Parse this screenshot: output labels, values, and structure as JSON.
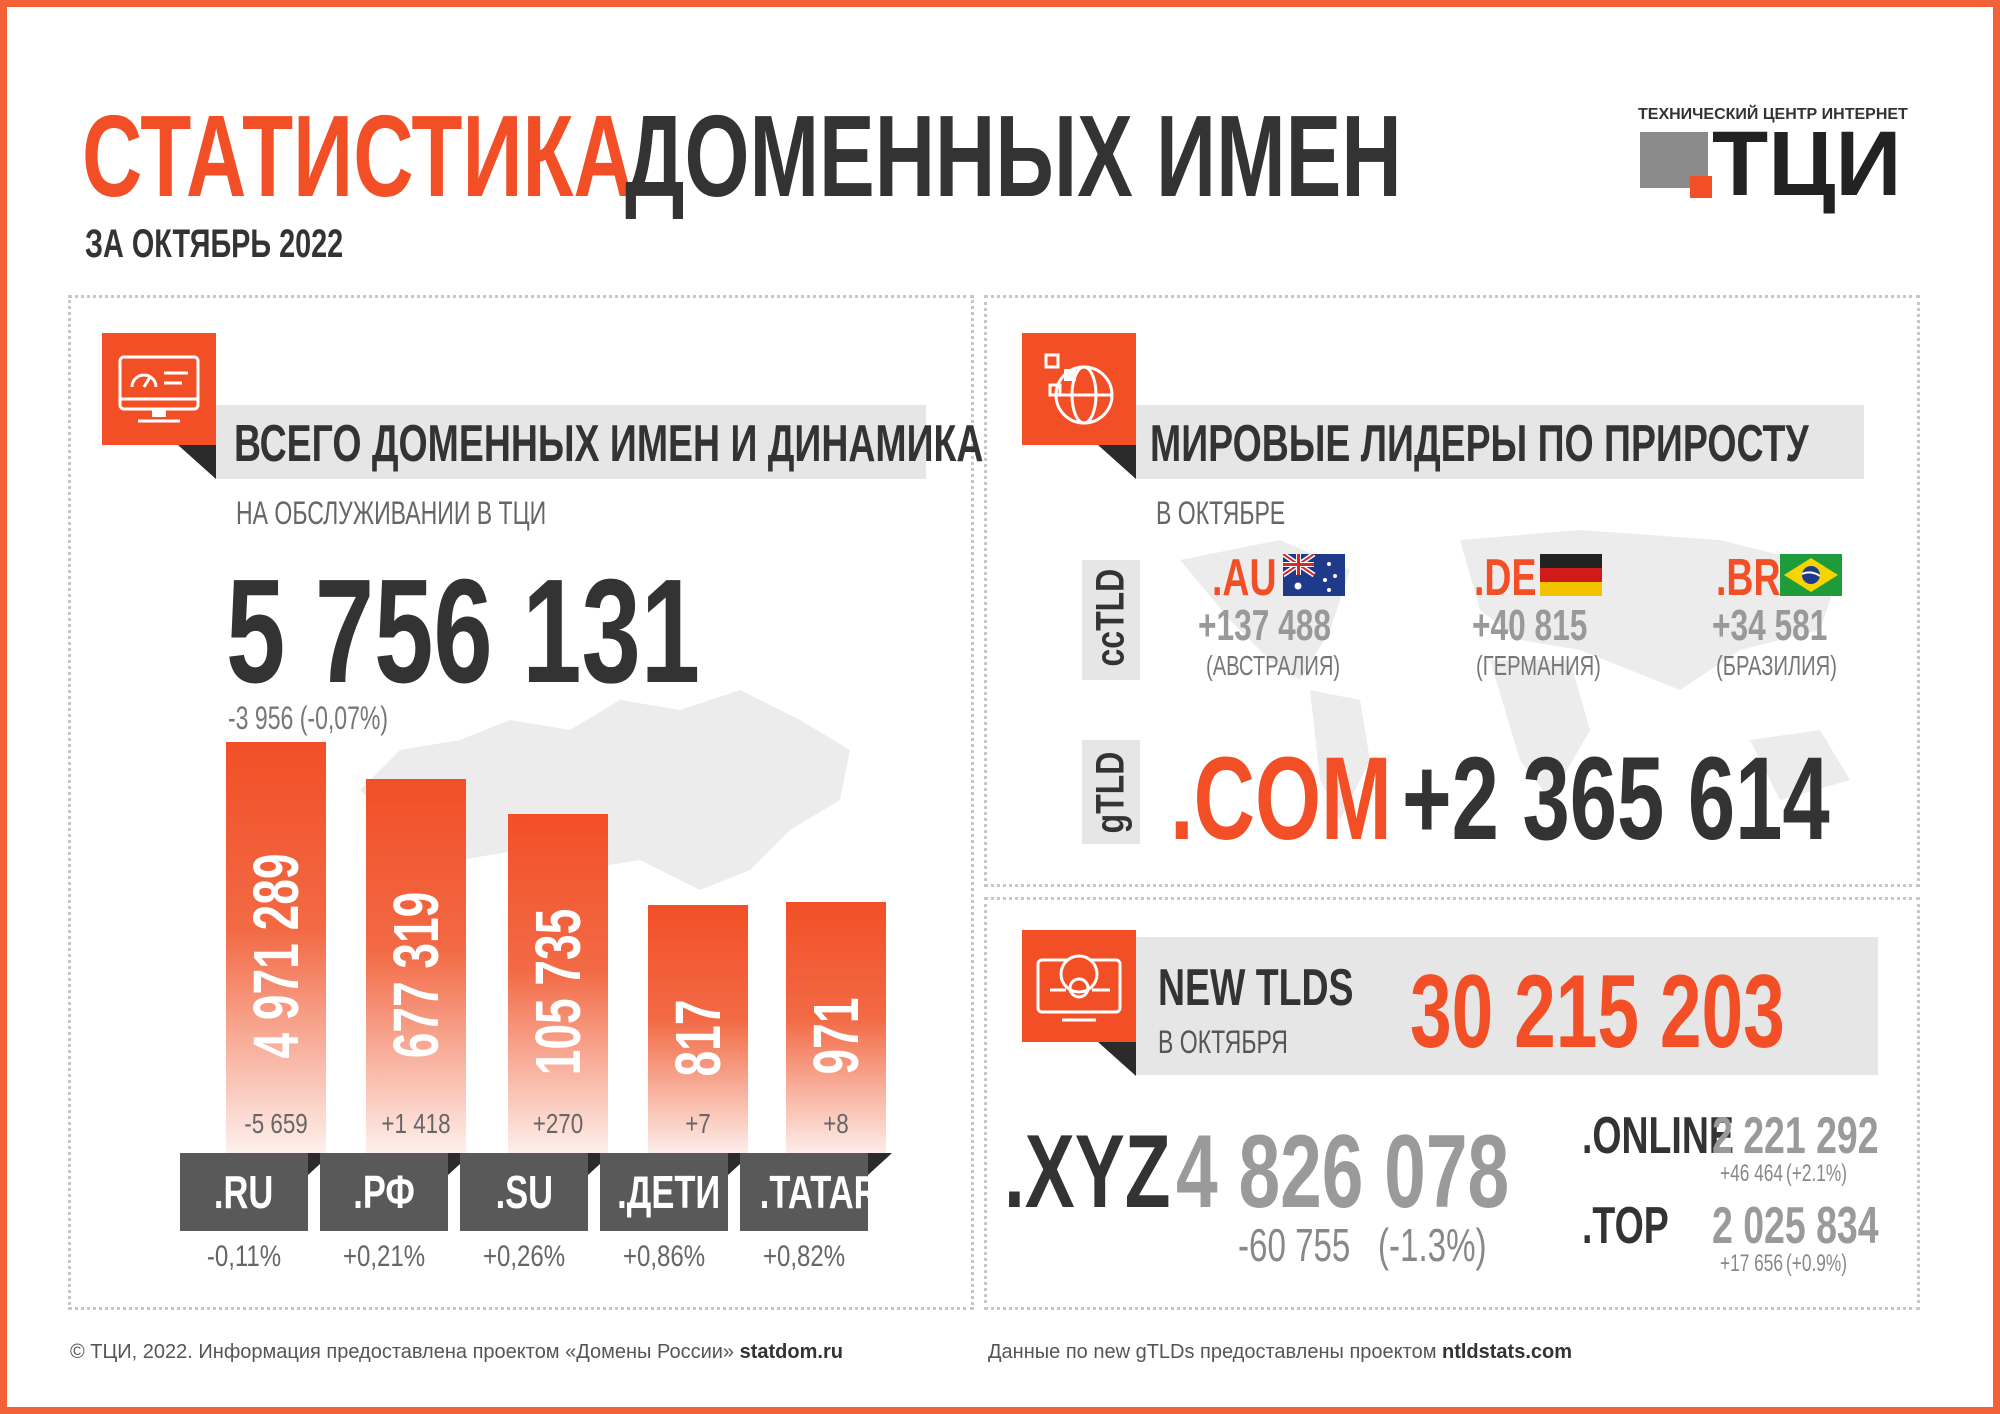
{
  "header": {
    "title_orange": "СТАТИСТИКА",
    "title_dark": "ДОМЕННЫХ ИМЕН",
    "subtitle": "ЗА ОКТЯБРЬ 2022"
  },
  "logo": {
    "caption": "ТЕХНИЧЕСКИЙ ЦЕНТР ИНТЕРНЕТ",
    "text": "ТЦИ"
  },
  "left_panel": {
    "title": "ВСЕГО ДОМЕННЫХ ИМЕН И ДИНАМИКА",
    "sublabel": "НА ОБСЛУЖИВАНИИ В ТЦИ",
    "total": "5 756 131",
    "total_change": "-3 956 (-0,07%)",
    "icon": "monitor-dashboard-icon"
  },
  "chart_data": {
    "type": "bar",
    "categories": [
      ".RU",
      ".РФ",
      ".SU",
      ".ДЕТИ",
      ".TATAR"
    ],
    "values": [
      4971289,
      677319,
      105735,
      817,
      971
    ],
    "value_labels": [
      "4 971 289",
      "677 319",
      "105 735",
      "817",
      "971"
    ],
    "changes": [
      "-5 659",
      "+1 418",
      "+270",
      "+7",
      "+8"
    ],
    "change_pct": [
      "-0,11%",
      "+0,21%",
      "+0,26%",
      "+0,86%",
      "+0,82%"
    ]
  },
  "right_panel": {
    "title": "МИРОВЫЕ ЛИДЕРЫ ПО ПРИРОСТУ",
    "sublabel": "В ОКТЯБРЕ",
    "icon": "globe-network-icon",
    "cctld_label": "ccTLD",
    "gtld_label": "gTLD",
    "cctld": [
      {
        "domain": ".AU",
        "value": "+137 488",
        "country": "(АВСТРАЛИЯ)",
        "flag": "australia-flag-icon"
      },
      {
        "domain": ".DE",
        "value": "+40 815",
        "country": "(ГЕРМАНИЯ)",
        "flag": "germany-flag-icon"
      },
      {
        "domain": ".BR",
        "value": "+34 581",
        "country": "(БРАЗИЛИЯ)",
        "flag": "brazil-flag-icon"
      }
    ],
    "gtld": {
      "domain": ".COM",
      "value": "+2 365 614"
    }
  },
  "new_tlds": {
    "title": "NEW TLDS",
    "sublabel": "В ОКТЯБРЯ",
    "total": "30 215 203",
    "icon": "globe-gear-monitor-icon",
    "xyz": {
      "domain": ".XYZ",
      "value": "4 826 078",
      "change": "-60 755",
      "pct": "(-1.3%)"
    },
    "online": {
      "domain": ".ONLINE",
      "value": "2 221 292",
      "change": "+46 464",
      "pct": "(+2.1%)"
    },
    "top": {
      "domain": ".TOP",
      "value": "2 025 834",
      "change": "+17 656",
      "pct": "(+0.9%)"
    }
  },
  "footer": {
    "left_prefix": "© ТЦИ, 2022.  Информация предоставлена проектом «Домены России»",
    "left_link": "statdom.ru",
    "right_prefix": "Данные по new gTLDs предоставлены проектом",
    "right_link": "ntldstats.com"
  },
  "colors": {
    "accent": "#f24f27",
    "dark": "#333333",
    "grey": "#8a8a8a",
    "panel_bg": "#e6e6e6"
  }
}
